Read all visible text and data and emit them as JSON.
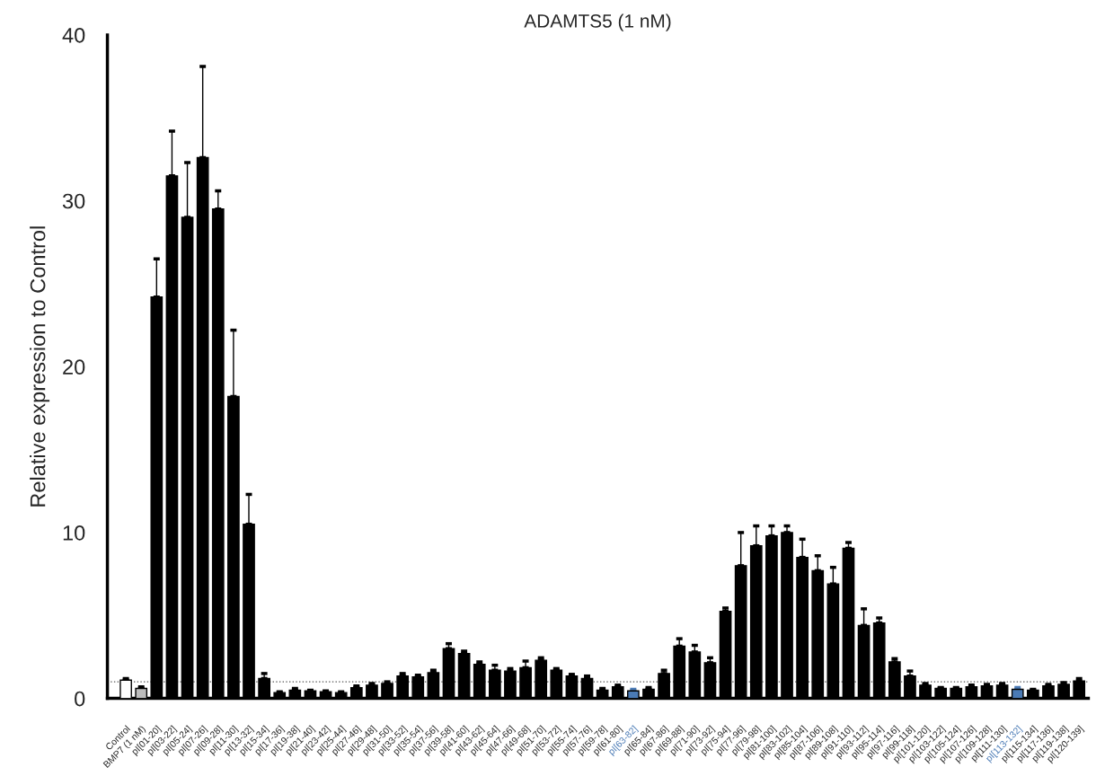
{
  "chart_data": {
    "type": "bar",
    "title": "ADAMTS5 (1 nM)",
    "ylabel": "Relative expression to Control",
    "categories": [
      "Control",
      "BMP7 (1 nM)",
      "pI[01-20]",
      "pI[03-22]",
      "pI[05-24]",
      "pI[07-26]",
      "pI[09-28]",
      "pI[11-30]",
      "pI[13-32]",
      "pI[15-34]",
      "pI[17-36]",
      "pI[19-38]",
      "pI[21-40]",
      "pI[23-42]",
      "pI[25-44]",
      "pI[27-46]",
      "pI[29-48]",
      "pI[31-50]",
      "pI[33-52]",
      "pI[35-54]",
      "pI[37-56]",
      "pI[39-58]",
      "pI[41-60]",
      "pI[43-62]",
      "pI[45-64]",
      "pI[47-66]",
      "pI[49-68]",
      "pI[51-70]",
      "pI[53-72]",
      "pI[55-74]",
      "pI[57-76]",
      "pI[59-78]",
      "pI[61-80]",
      "pI[63-82]",
      "pI[65-84]",
      "pI[67-86]",
      "pI[69-88]",
      "pI[71-90]",
      "pI[73-92]",
      "pI[75-94]",
      "pI[77-96]",
      "pI[79-98]",
      "pI[81-100]",
      "pI[83-102]",
      "pI[85-104]",
      "pI[87-106]",
      "pI[89-108]",
      "pI[91-110]",
      "pI[93-112]",
      "pI[95-114]",
      "pI[97-116]",
      "pI[99-118]",
      "pI[101-120]",
      "pI[103-122]",
      "pI[105-124]",
      "pI[107-126]",
      "pI[109-128]",
      "pI[111-130]",
      "pI[113-132]",
      "pI[115-134]",
      "pI[117-136]",
      "pI[119-138]",
      "pI[120-139]"
    ],
    "values": [
      1.1,
      0.6,
      24.2,
      31.5,
      29.0,
      32.6,
      29.5,
      18.2,
      10.5,
      1.2,
      0.35,
      0.5,
      0.45,
      0.4,
      0.35,
      0.65,
      0.8,
      0.9,
      1.35,
      1.3,
      1.55,
      3.0,
      2.7,
      2.05,
      1.7,
      1.65,
      1.85,
      2.3,
      1.7,
      1.35,
      1.2,
      0.5,
      0.7,
      0.45,
      0.55,
      1.5,
      3.15,
      2.8,
      2.15,
      5.25,
      8.0,
      9.2,
      9.8,
      10.0,
      8.5,
      7.7,
      6.9,
      9.05,
      4.4,
      4.55,
      2.2,
      1.35,
      0.8,
      0.6,
      0.6,
      0.7,
      0.75,
      0.8,
      0.55,
      0.5,
      0.75,
      0.85,
      1.05
    ],
    "errors": [
      0.1,
      0.1,
      2.3,
      2.7,
      3.3,
      5.5,
      1.1,
      4.0,
      1.8,
      0.3,
      0.05,
      0.1,
      0.05,
      0.05,
      0.05,
      0.1,
      0.1,
      0.1,
      0.15,
      0.1,
      0.15,
      0.3,
      0.15,
      0.15,
      0.3,
      0.15,
      0.4,
      0.15,
      0.1,
      0.1,
      0.15,
      0.1,
      0.1,
      0.1,
      0.1,
      0.2,
      0.45,
      0.4,
      0.3,
      0.2,
      2.0,
      1.2,
      0.6,
      0.4,
      1.1,
      0.9,
      1.0,
      0.35,
      1.0,
      0.3,
      0.2,
      0.3,
      0.1,
      0.05,
      0.05,
      0.1,
      0.1,
      0.1,
      0.1,
      0.05,
      0.1,
      0.1,
      0.15
    ],
    "colors": [
      "#ffffff",
      "#bdbdbd",
      "#000000",
      "#000000",
      "#000000",
      "#000000",
      "#000000",
      "#000000",
      "#000000",
      "#000000",
      "#000000",
      "#000000",
      "#000000",
      "#000000",
      "#000000",
      "#000000",
      "#000000",
      "#000000",
      "#000000",
      "#000000",
      "#000000",
      "#000000",
      "#000000",
      "#000000",
      "#000000",
      "#000000",
      "#000000",
      "#000000",
      "#000000",
      "#000000",
      "#000000",
      "#000000",
      "#000000",
      "#4a7ab5",
      "#000000",
      "#000000",
      "#000000",
      "#000000",
      "#000000",
      "#000000",
      "#000000",
      "#000000",
      "#000000",
      "#000000",
      "#000000",
      "#000000",
      "#000000",
      "#000000",
      "#000000",
      "#000000",
      "#000000",
      "#000000",
      "#000000",
      "#000000",
      "#000000",
      "#000000",
      "#000000",
      "#000000",
      "#4a7ab5",
      "#000000",
      "#000000",
      "#000000",
      "#000000"
    ],
    "ylim": [
      0,
      40
    ],
    "yticks": [
      0,
      10,
      20,
      30,
      40
    ],
    "grid": false,
    "legend": false,
    "ref_lines": [
      {
        "axis": "y",
        "value": 1,
        "line_style": "dotted",
        "color": "#555555"
      }
    ]
  }
}
